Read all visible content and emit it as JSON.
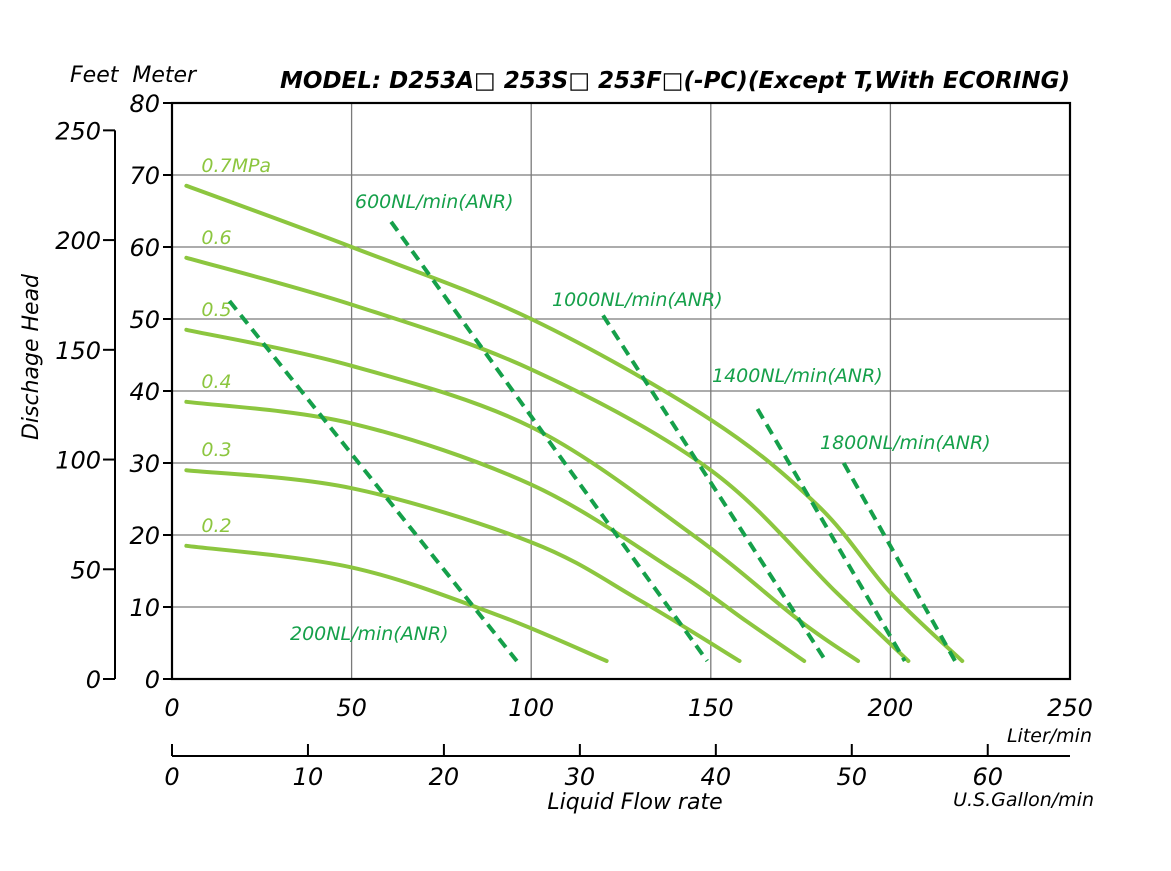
{
  "chart_data": {
    "type": "line",
    "title": "MODEL: D253A□ 253S□ 253F□(-PC)(Except T,With ECORING)",
    "units_header": "Feet  Meter",
    "ylabel": "Dischage Head",
    "xlabel": "Liquid Flow rate",
    "x_unit_primary": "Liter/min",
    "x_unit_secondary": "U.S.Gallon/min",
    "xlim": [
      0,
      250
    ],
    "ylim": [
      0,
      80
    ],
    "grid": true,
    "x_ticks": [
      "0",
      "50",
      "100",
      "150",
      "200",
      "250"
    ],
    "y_ticks_meter": [
      "0",
      "10",
      "20",
      "30",
      "40",
      "50",
      "60",
      "70",
      "80"
    ],
    "y_ticks_feet": [
      {
        "label": "0",
        "value": 0
      },
      {
        "label": "50",
        "value": 50
      },
      {
        "label": "100",
        "value": 100
      },
      {
        "label": "150",
        "value": 150
      },
      {
        "label": "200",
        "value": 200
      },
      {
        "label": "250",
        "value": 250
      }
    ],
    "x_ticks_gallon": [
      {
        "label": "0",
        "value": 0
      },
      {
        "label": "10",
        "value": 10
      },
      {
        "label": "20",
        "value": 20
      },
      {
        "label": "30",
        "value": 30
      },
      {
        "label": "40",
        "value": 40
      },
      {
        "label": "50",
        "value": 50
      },
      {
        "label": "60",
        "value": 60
      }
    ],
    "pressure_color": "#8cc63f",
    "air_color": "#15a04a",
    "pressure_series": [
      {
        "name": "0.7MPa",
        "points": [
          [
            4,
            68.5
          ],
          [
            50,
            60
          ],
          [
            100,
            50
          ],
          [
            150,
            36
          ],
          [
            180,
            24
          ],
          [
            200,
            12
          ],
          [
            220,
            2.5
          ]
        ]
      },
      {
        "name": "0.6",
        "points": [
          [
            4,
            58.5
          ],
          [
            50,
            52
          ],
          [
            100,
            43
          ],
          [
            150,
            29
          ],
          [
            185,
            12
          ],
          [
            205,
            2.5
          ]
        ]
      },
      {
        "name": "0.5",
        "points": [
          [
            4,
            48.5
          ],
          [
            50,
            43.5
          ],
          [
            100,
            35
          ],
          [
            145,
            20
          ],
          [
            175,
            8
          ],
          [
            191,
            2.5
          ]
        ]
      },
      {
        "name": "0.4",
        "points": [
          [
            4,
            38.5
          ],
          [
            50,
            35.5
          ],
          [
            100,
            27
          ],
          [
            140,
            15
          ],
          [
            160,
            8
          ],
          [
            176,
            2.5
          ]
        ]
      },
      {
        "name": "0.3",
        "points": [
          [
            4,
            29
          ],
          [
            50,
            26.5
          ],
          [
            100,
            19
          ],
          [
            130,
            11
          ],
          [
            158,
            2.5
          ]
        ]
      },
      {
        "name": "0.2",
        "points": [
          [
            4,
            18.5
          ],
          [
            50,
            15.5
          ],
          [
            90,
            9
          ],
          [
            121,
            2.5
          ]
        ]
      }
    ],
    "air_series": [
      {
        "name": "200NL/min(ANR)",
        "points": [
          [
            16,
            52.5
          ],
          [
            96,
            2.5
          ]
        ]
      },
      {
        "name": "600NL/min(ANR)",
        "points": [
          [
            61,
            63.5
          ],
          [
            149,
            2.5
          ]
        ]
      },
      {
        "name": "1000NL/min(ANR)",
        "points": [
          [
            120,
            50.5
          ],
          [
            182,
            2.5
          ]
        ]
      },
      {
        "name": "1400NL/min(ANR)",
        "points": [
          [
            163,
            37.5
          ],
          [
            204,
            2.5
          ]
        ]
      },
      {
        "name": "1800NL/min(ANR)",
        "points": [
          [
            187,
            30
          ],
          [
            218,
            2.5
          ]
        ]
      }
    ]
  }
}
